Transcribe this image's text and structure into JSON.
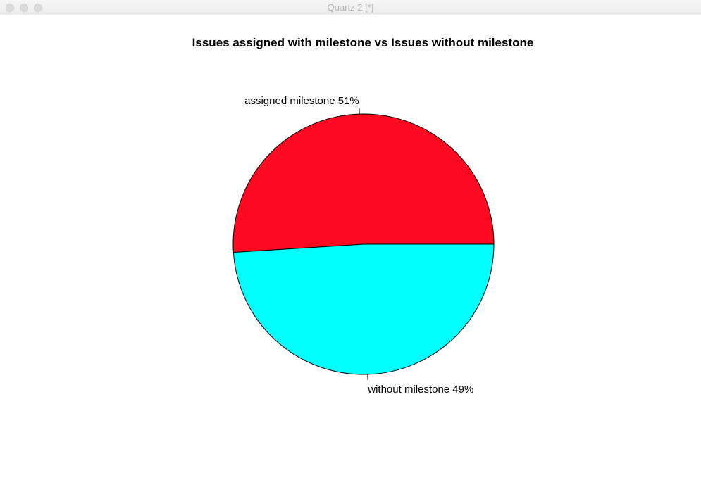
{
  "window": {
    "title": "Quartz 2 [*]"
  },
  "chart_data": {
    "type": "pie",
    "title": "Issues assigned with milestone vs Issues without milestone",
    "slices": [
      {
        "label": "assigned milestone 51%",
        "value": 51,
        "color": "#ff0a20"
      },
      {
        "label": "without milestone 49%",
        "value": 49,
        "color": "#00ffff"
      }
    ],
    "start_angle_deg": 0,
    "direction": "counterclockwise",
    "edge_color": "#000000"
  }
}
